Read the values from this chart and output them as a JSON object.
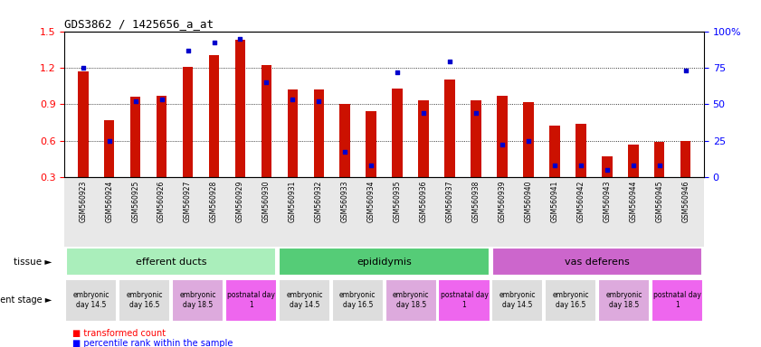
{
  "title": "GDS3862 / 1425656_a_at",
  "samples": [
    "GSM560923",
    "GSM560924",
    "GSM560925",
    "GSM560926",
    "GSM560927",
    "GSM560928",
    "GSM560929",
    "GSM560930",
    "GSM560931",
    "GSM560932",
    "GSM560933",
    "GSM560934",
    "GSM560935",
    "GSM560936",
    "GSM560937",
    "GSM560938",
    "GSM560939",
    "GSM560940",
    "GSM560941",
    "GSM560942",
    "GSM560943",
    "GSM560944",
    "GSM560945",
    "GSM560946"
  ],
  "red_values": [
    1.17,
    0.77,
    0.96,
    0.97,
    1.21,
    1.3,
    1.43,
    1.22,
    1.02,
    1.02,
    0.9,
    0.84,
    1.03,
    0.93,
    1.1,
    0.93,
    0.97,
    0.92,
    0.72,
    0.74,
    0.47,
    0.57,
    0.59,
    0.6
  ],
  "blue_values": [
    75,
    25,
    52,
    53,
    87,
    92,
    95,
    65,
    53,
    52,
    17,
    8,
    72,
    44,
    79,
    44,
    22,
    25,
    8,
    8,
    5,
    8,
    8,
    73
  ],
  "ylim_left": [
    0.3,
    1.5
  ],
  "ylim_right": [
    0,
    100
  ],
  "yticks_left": [
    0.3,
    0.6,
    0.9,
    1.2,
    1.5
  ],
  "yticks_right": [
    0,
    25,
    50,
    75,
    100
  ],
  "ytick_labels_right": [
    "0",
    "25",
    "50",
    "75",
    "100%"
  ],
  "bar_color": "#cc1100",
  "dot_color": "#0000cc",
  "tissues": [
    {
      "label": "efferent ducts",
      "start": 0,
      "end": 8,
      "color": "#aaeebb"
    },
    {
      "label": "epididymis",
      "start": 8,
      "end": 16,
      "color": "#55cc77"
    },
    {
      "label": "vas deferens",
      "start": 16,
      "end": 24,
      "color": "#cc66cc"
    }
  ],
  "dev_stages": [
    {
      "label": "embryonic\nday 14.5",
      "start": 0,
      "end": 2,
      "color": "#dddddd"
    },
    {
      "label": "embryonic\nday 16.5",
      "start": 2,
      "end": 4,
      "color": "#dddddd"
    },
    {
      "label": "embryonic\nday 18.5",
      "start": 4,
      "end": 6,
      "color": "#ddaadd"
    },
    {
      "label": "postnatal day\n1",
      "start": 6,
      "end": 8,
      "color": "#ee66ee"
    },
    {
      "label": "embryonic\nday 14.5",
      "start": 8,
      "end": 10,
      "color": "#dddddd"
    },
    {
      "label": "embryonic\nday 16.5",
      "start": 10,
      "end": 12,
      "color": "#dddddd"
    },
    {
      "label": "embryonic\nday 18.5",
      "start": 12,
      "end": 14,
      "color": "#ddaadd"
    },
    {
      "label": "postnatal day\n1",
      "start": 14,
      "end": 16,
      "color": "#ee66ee"
    },
    {
      "label": "embryonic\nday 14.5",
      "start": 16,
      "end": 18,
      "color": "#dddddd"
    },
    {
      "label": "embryonic\nday 16.5",
      "start": 18,
      "end": 20,
      "color": "#dddddd"
    },
    {
      "label": "embryonic\nday 18.5",
      "start": 20,
      "end": 22,
      "color": "#ddaadd"
    },
    {
      "label": "postnatal day\n1",
      "start": 22,
      "end": 24,
      "color": "#ee66ee"
    }
  ],
  "legend_red": "transformed count",
  "legend_blue": "percentile rank within the sample",
  "tissue_label": "tissue",
  "dev_label": "development stage",
  "bar_width": 0.4,
  "figsize": [
    8.41,
    3.84
  ],
  "dpi": 100
}
